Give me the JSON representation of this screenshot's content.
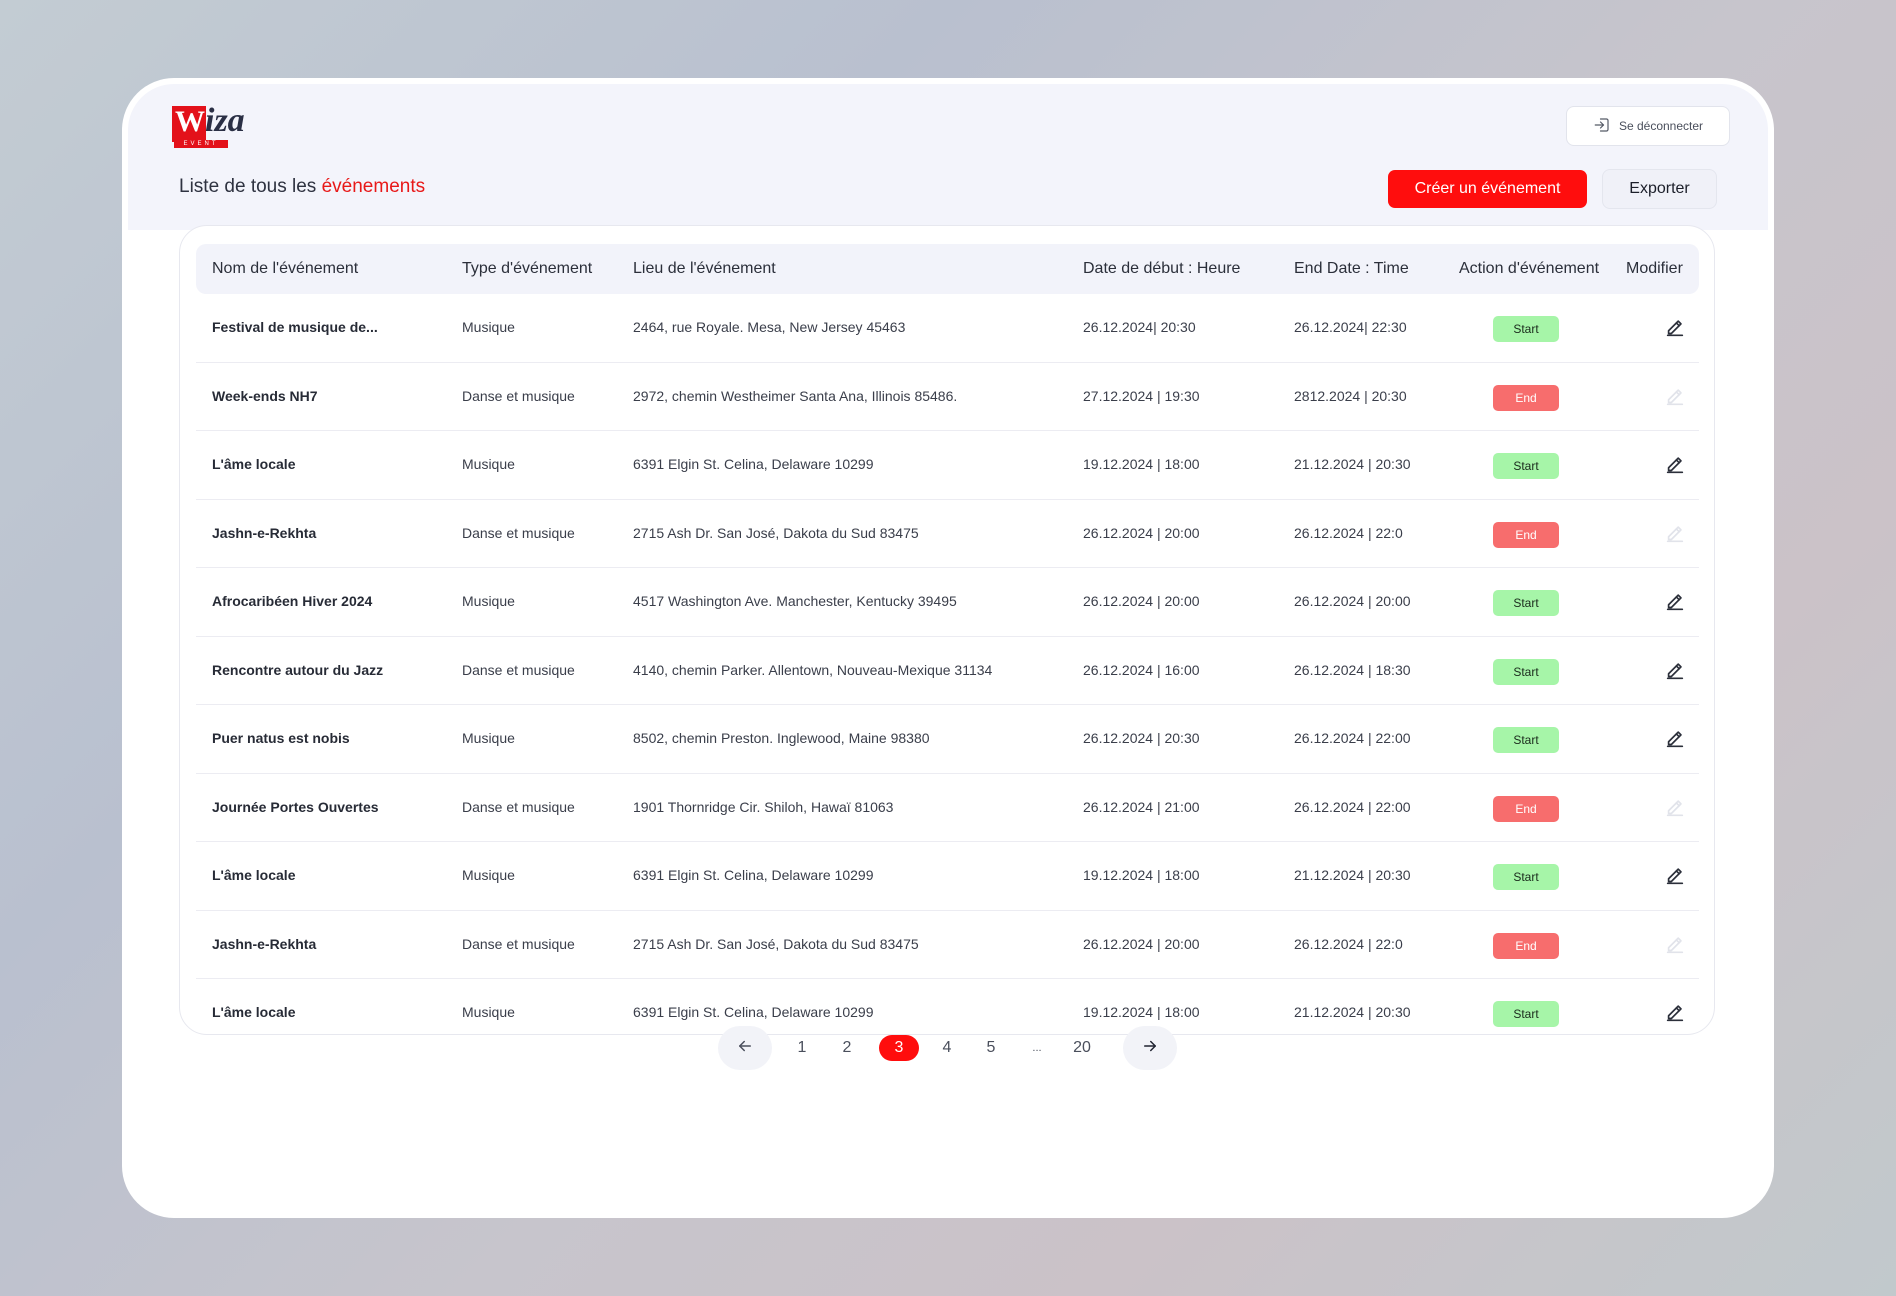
{
  "brand": {
    "logo_main": "W",
    "logo_rest": "iza",
    "logo_sub": "EVENT"
  },
  "header": {
    "logout_label": "Se déconnecter"
  },
  "page": {
    "title_prefix": "Liste de tous les ",
    "title_accent": "événements",
    "create_button": "Créer un événement",
    "export_button": "Exporter"
  },
  "table": {
    "columns": [
      "Nom de l'événement",
      "Type d'événement",
      "Lieu de l'événement",
      "Date de début : Heure",
      "End Date : Time",
      "Action d'événement",
      "Modifier"
    ],
    "rows": [
      {
        "name": "Festival de musique de...",
        "type": "Musique",
        "location": "2464, rue Royale. Mesa, New Jersey 45463",
        "start": "26.12.2024| 20:30",
        "end": "26.12.2024| 22:30",
        "action": "Start",
        "editable": true
      },
      {
        "name": "Week-ends NH7",
        "type": "Danse et musique",
        "location": "2972, chemin Westheimer Santa Ana, Illinois 85486.",
        "start": "27.12.2024 | 19:30",
        "end": "2812.2024 | 20:30",
        "action": "End",
        "editable": false
      },
      {
        "name": "L'âme locale",
        "type": "Musique",
        "location": "6391 Elgin St. Celina, Delaware 10299",
        "start": "19.12.2024 | 18:00",
        "end": "21.12.2024 | 20:30",
        "action": "Start",
        "editable": true
      },
      {
        "name": "Jashn-e-Rekhta",
        "type": "Danse et musique",
        "location": "2715 Ash Dr. San José, Dakota du Sud 83475",
        "start": "26.12.2024 | 20:00",
        "end": "26.12.2024 | 22:0",
        "action": "End",
        "editable": false
      },
      {
        "name": "Afrocaribéen Hiver 2024",
        "type": "Musique",
        "location": "4517 Washington Ave. Manchester, Kentucky 39495",
        "start": "26.12.2024 | 20:00",
        "end": "26.12.2024 | 20:00",
        "action": "Start",
        "editable": true
      },
      {
        "name": "Rencontre autour du Jazz",
        "type": "Danse et musique",
        "location": "4140, chemin Parker. Allentown, Nouveau-Mexique 31134",
        "start": "26.12.2024 | 16:00",
        "end": "26.12.2024 | 18:30",
        "action": "Start",
        "editable": true
      },
      {
        "name": "Puer natus est nobis",
        "type": "Musique",
        "location": "8502, chemin Preston. Inglewood, Maine 98380",
        "start": "26.12.2024 | 20:30",
        "end": "26.12.2024 | 22:00",
        "action": "Start",
        "editable": true
      },
      {
        "name": "Journée Portes Ouvertes",
        "type": "Danse et musique",
        "location": "1901 Thornridge Cir. Shiloh, Hawaï 81063",
        "start": "26.12.2024 | 21:00",
        "end": "26.12.2024 | 22:00",
        "action": "End",
        "editable": false
      },
      {
        "name": "L'âme locale",
        "type": "Musique",
        "location": "6391 Elgin St. Celina, Delaware 10299",
        "start": "19.12.2024 | 18:00",
        "end": "21.12.2024 | 20:30",
        "action": "Start",
        "editable": true
      },
      {
        "name": "Jashn-e-Rekhta",
        "type": "Danse et musique",
        "location": "2715 Ash Dr. San José, Dakota du Sud 83475",
        "start": "26.12.2024 | 20:00",
        "end": "26.12.2024 | 22:0",
        "action": "End",
        "editable": false
      },
      {
        "name": "L'âme locale",
        "type": "Musique",
        "location": "6391 Elgin St. Celina, Delaware 10299",
        "start": "19.12.2024 | 18:00",
        "end": "21.12.2024 | 20:30",
        "action": "Start",
        "editable": true
      }
    ]
  },
  "pagination": {
    "pages": [
      "1",
      "2",
      "3",
      "4",
      "5",
      "...",
      "20"
    ],
    "current": "3"
  },
  "colors": {
    "accent": "#ff0d0d",
    "start_badge": "#a6f5a8",
    "end_badge": "#f76d6d"
  }
}
